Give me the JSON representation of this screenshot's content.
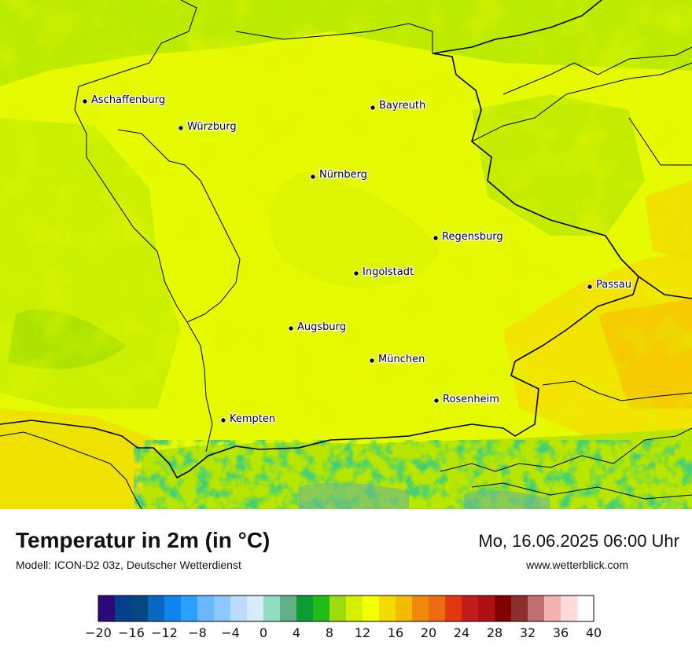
{
  "map": {
    "cities": [
      {
        "name": "Aschaffenburg"
      },
      {
        "name": "Bayreuth"
      },
      {
        "name": "Würzburg"
      },
      {
        "name": "Nürnberg"
      },
      {
        "name": "Regensburg"
      },
      {
        "name": "Ingolstadt"
      },
      {
        "name": "Passau"
      },
      {
        "name": "Augsburg"
      },
      {
        "name": "München"
      },
      {
        "name": "Rosenheim"
      },
      {
        "name": "Kempten"
      }
    ]
  },
  "footer": {
    "title": "Temperatur in 2m (in °C)",
    "model": "Modell: ICON-D2 03z, Deutscher Wetterdienst",
    "datetime": "Mo, 16.06.2025 06:00 Uhr",
    "website": "www.wetterblick.com"
  },
  "legend": {
    "min": -20,
    "max": 40,
    "step": 2,
    "tick_labels": [
      "−20",
      "−16",
      "−12",
      "−8",
      "−4",
      "0",
      "4",
      "8",
      "12",
      "16",
      "20",
      "24",
      "28",
      "32",
      "36",
      "40"
    ],
    "colors": [
      "#2d0a78",
      "#033f8a",
      "#064780",
      "#0a66c0",
      "#0f86ee",
      "#2aa0ff",
      "#6ab8ff",
      "#8cc7ff",
      "#bcdcfd",
      "#d8ebff",
      "#94dcc0",
      "#62b089",
      "#0d9c33",
      "#22bb1c",
      "#9bdc0c",
      "#d2f000",
      "#f4ff00",
      "#f2dc00",
      "#f5bb00",
      "#f08a0a",
      "#ec6a10",
      "#e4370e",
      "#c21c1c",
      "#b00f14",
      "#820000",
      "#8c2e2e",
      "#c07070",
      "#f3b2b2",
      "#ffdcdc"
    ]
  }
}
